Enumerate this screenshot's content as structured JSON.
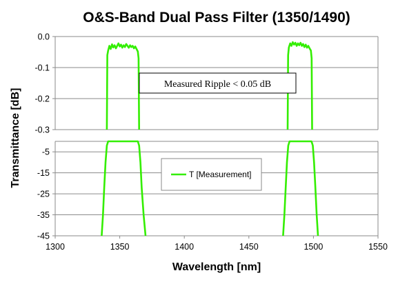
{
  "chart_data": {
    "type": "line",
    "title": "O&S-Band Dual Pass Filter (1350/1490)",
    "xlabel": "Wavelength [nm]",
    "ylabel": "Transmittance [dB]",
    "xlim": [
      1300,
      1550
    ],
    "x_ticks": [
      "1300",
      "1350",
      "1400",
      "1450",
      "1500",
      "1550"
    ],
    "grid": true,
    "series_color": "#33ee00",
    "panels": [
      {
        "id": "ripple-panel",
        "ylim": [
          -0.3,
          0.0
        ],
        "y_ticks": [
          "0.0",
          "-0.1",
          "-0.2",
          "-0.3"
        ],
        "y_tick_values": [
          0.0,
          -0.1,
          -0.2,
          -0.3
        ],
        "annotation": "Measured Ripple < 0.05 dB",
        "series": [
          {
            "name": "T [Measurement]",
            "x": [
              1340.0,
              1340.4,
              1341.0,
              1342.0,
              1343.0,
              1344.0,
              1345.0,
              1346.0,
              1347.0,
              1348.0,
              1349.0,
              1350.0,
              1351.0,
              1352.0,
              1353.0,
              1354.0,
              1355.0,
              1356.0,
              1357.0,
              1358.0,
              1359.0,
              1360.0,
              1361.0,
              1362.0,
              1363.0,
              1364.0,
              1364.6,
              1365.0
            ],
            "y": [
              -0.3,
              -0.06,
              -0.045,
              -0.03,
              -0.04,
              -0.025,
              -0.035,
              -0.028,
              -0.038,
              -0.03,
              -0.022,
              -0.032,
              -0.026,
              -0.036,
              -0.028,
              -0.034,
              -0.024,
              -0.03,
              -0.036,
              -0.028,
              -0.034,
              -0.03,
              -0.038,
              -0.032,
              -0.04,
              -0.048,
              -0.07,
              -0.3
            ]
          },
          {
            "name": "T [Measurement]",
            "x": [
              1480.0,
              1480.4,
              1481.0,
              1482.0,
              1483.0,
              1484.0,
              1485.0,
              1486.0,
              1487.0,
              1488.0,
              1489.0,
              1490.0,
              1491.0,
              1492.0,
              1493.0,
              1494.0,
              1495.0,
              1496.0,
              1497.0,
              1498.0,
              1498.6,
              1499.0
            ],
            "y": [
              -0.3,
              -0.06,
              -0.035,
              -0.022,
              -0.03,
              -0.018,
              -0.026,
              -0.02,
              -0.03,
              -0.022,
              -0.028,
              -0.02,
              -0.03,
              -0.024,
              -0.034,
              -0.026,
              -0.036,
              -0.03,
              -0.038,
              -0.045,
              -0.07,
              -0.3
            ]
          }
        ]
      },
      {
        "id": "full-panel",
        "ylim": [
          -45,
          0
        ],
        "y_ticks": [
          "-5",
          "-15",
          "-25",
          "-35",
          "-45"
        ],
        "y_tick_values": [
          -5,
          -15,
          -25,
          -35,
          -45
        ],
        "legend": {
          "label": "T [Measurement]",
          "position": "center"
        },
        "series": [
          {
            "name": "T [Measurement]",
            "x": [
              1336.0,
              1337.0,
              1338.0,
              1339.0,
              1340.0,
              1341.0,
              1364.0,
              1365.0,
              1366.0,
              1367.0,
              1368.5,
              1370.0
            ],
            "y": [
              -45,
              -35,
              -22,
              -10,
              -2,
              0,
              0,
              -2,
              -10,
              -22,
              -35,
              -45
            ],
            "color": "#33ee00"
          },
          {
            "name": "T [Measurement]",
            "x": [
              1476.5,
              1477.5,
              1478.5,
              1479.5,
              1480.5,
              1481.5,
              1498.5,
              1499.5,
              1500.5,
              1501.5,
              1502.5,
              1503.5
            ],
            "y": [
              -45,
              -35,
              -22,
              -10,
              -2,
              0,
              0,
              -2,
              -10,
              -22,
              -35,
              -45
            ],
            "color": "#33ee00"
          }
        ]
      }
    ]
  }
}
